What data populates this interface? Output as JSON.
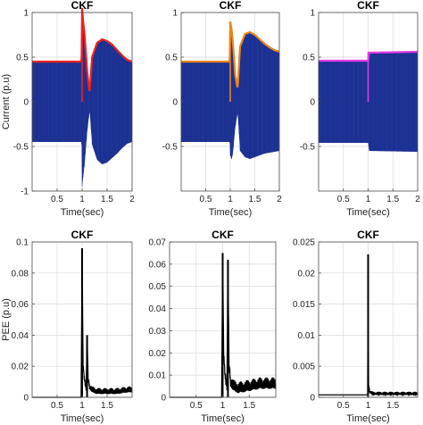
{
  "chart_data": [
    {
      "type": "line",
      "title": "CKF",
      "xlabel": "Time(sec)",
      "ylabel": "Current (p.u)",
      "xlim": [
        0,
        2
      ],
      "ylim": [
        -1,
        1
      ],
      "xticks": [
        "0.5",
        "1",
        "1.5",
        "2"
      ],
      "yticks": [
        "-1",
        "-0.5",
        "0",
        "0.5",
        "1"
      ],
      "grid": true,
      "band": {
        "x": [
          0,
          0.99,
          1.0,
          1.02,
          1.05,
          1.1,
          1.15,
          1.2,
          1.3,
          1.4,
          1.5,
          1.6,
          1.7,
          1.8,
          1.9,
          2.0
        ],
        "upper": [
          0.45,
          0.45,
          1.05,
          0.9,
          0.75,
          0.35,
          0.1,
          0.5,
          0.66,
          0.7,
          0.68,
          0.64,
          0.58,
          0.52,
          0.47,
          0.45
        ],
        "lower": [
          -0.45,
          -0.45,
          -0.95,
          -0.85,
          -0.7,
          -0.35,
          -0.1,
          -0.48,
          -0.65,
          -0.7,
          -0.68,
          -0.63,
          -0.58,
          -0.52,
          -0.47,
          -0.45
        ]
      },
      "envelope_color": "#ee2222",
      "fill_color": "#1a2f8c"
    },
    {
      "type": "line",
      "title": "CKF",
      "xlabel": "Time(sec)",
      "ylabel": "",
      "xlim": [
        0,
        2
      ],
      "ylim": [
        -1,
        1
      ],
      "xticks": [
        "0.5",
        "1",
        "1.5",
        "2"
      ],
      "yticks": [
        "-0.5",
        "0",
        "0.5",
        "1"
      ],
      "grid": true,
      "band": {
        "x": [
          0,
          0.99,
          1.0,
          1.03,
          1.06,
          1.1,
          1.15,
          1.2,
          1.3,
          1.4,
          1.5,
          1.6,
          1.7,
          1.8,
          1.9,
          2.0
        ],
        "upper": [
          0.45,
          0.45,
          0.9,
          0.8,
          0.62,
          0.3,
          0.15,
          0.62,
          0.76,
          0.78,
          0.75,
          0.7,
          0.65,
          0.61,
          0.58,
          0.56
        ],
        "lower": [
          -0.45,
          -0.45,
          -0.6,
          -0.65,
          -0.55,
          -0.3,
          -0.12,
          -0.55,
          -0.62,
          -0.64,
          -0.62,
          -0.6,
          -0.58,
          -0.57,
          -0.56,
          -0.55
        ]
      },
      "envelope_color": "#e8861c",
      "fill_color": "#1a2f8c"
    },
    {
      "type": "line",
      "title": "CKF",
      "xlabel": "Time(sec)",
      "ylabel": "",
      "xlim": [
        0,
        2
      ],
      "ylim": [
        -1,
        1
      ],
      "xticks": [
        "0.5",
        "1",
        "1.5",
        "2"
      ],
      "yticks": [
        "-0.5",
        "0",
        "0.5",
        "1"
      ],
      "grid": true,
      "band": {
        "x": [
          0,
          1.0,
          1.02,
          2.0
        ],
        "upper": [
          0.46,
          0.46,
          0.55,
          0.56
        ],
        "lower": [
          -0.46,
          -0.46,
          -0.55,
          -0.56
        ]
      },
      "envelope_color": "#e23be2",
      "fill_color": "#1a2f8c"
    },
    {
      "type": "line",
      "title": "CKF",
      "xlabel": "Time(sec)",
      "ylabel": "PEE (p.u)",
      "xlim": [
        0,
        2
      ],
      "ylim": [
        0,
        0.1
      ],
      "xticks": [
        "0.5",
        "1",
        "1.5"
      ],
      "yticks": [
        "0",
        "0.02",
        "0.04",
        "0.06",
        "0.08",
        "0.1"
      ],
      "grid": true,
      "series": [
        {
          "x": [
            0,
            0.98,
            1.0,
            1.02,
            1.05,
            1.08,
            1.1,
            1.12,
            1.15,
            1.2,
            1.3,
            1.5,
            1.7,
            1.9,
            2.0
          ],
          "y": [
            0,
            0,
            0.096,
            0.02,
            0.01,
            0.005,
            0.04,
            0.012,
            0.006,
            0.004,
            0.003,
            0.003,
            0.003,
            0.004,
            0.004
          ],
          "noise": 0.003
        }
      ],
      "line_color": "#000000"
    },
    {
      "type": "line",
      "title": "CKF",
      "xlabel": "Time(sec)",
      "ylabel": "",
      "xlim": [
        0,
        2
      ],
      "ylim": [
        0,
        0.07
      ],
      "xticks": [
        "0.5",
        "1",
        "1.5"
      ],
      "yticks": [
        "0",
        "0.01",
        "0.02",
        "0.03",
        "0.04",
        "0.05",
        "0.06",
        "0.07"
      ],
      "grid": true,
      "series": [
        {
          "x": [
            0,
            0.98,
            1.0,
            1.02,
            1.05,
            1.08,
            1.1,
            1.12,
            1.15,
            1.2,
            1.3,
            1.5,
            1.7,
            1.9,
            2.0
          ],
          "y": [
            0,
            0,
            0.065,
            0.018,
            0.008,
            0.004,
            0.062,
            0.015,
            0.006,
            0.004,
            0.003,
            0.004,
            0.005,
            0.005,
            0.005
          ],
          "noise": 0.004
        }
      ],
      "line_color": "#000000"
    },
    {
      "type": "line",
      "title": "CKF",
      "xlabel": "Time(sec)",
      "ylabel": "",
      "xlim": [
        0,
        2
      ],
      "ylim": [
        0,
        0.025
      ],
      "xticks": [
        "0.5",
        "1",
        "1.5"
      ],
      "yticks": [
        "0",
        "0.005",
        "0.01",
        "0.015",
        "0.02",
        "0.025"
      ],
      "grid": true,
      "series": [
        {
          "x": [
            0,
            0.99,
            1.0,
            1.01,
            1.03,
            1.1,
            1.5,
            2.0
          ],
          "y": [
            0.0004,
            0.0004,
            0.023,
            0.002,
            0.0008,
            0.0005,
            0.0005,
            0.0005
          ],
          "noise": 0.0004
        }
      ],
      "line_color": "#000000"
    }
  ]
}
